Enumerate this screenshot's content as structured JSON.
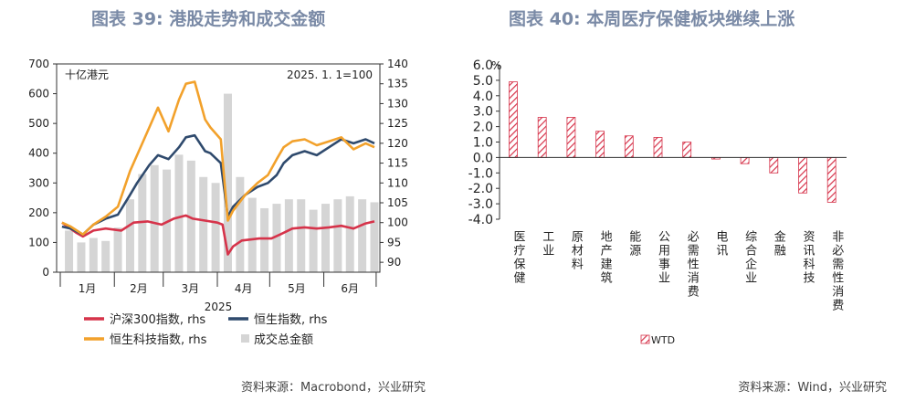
{
  "titles": {
    "left": "图表 39: 港股走势和成交金额",
    "right": "图表 40: 本周医疗保健板块继续上涨"
  },
  "sources": {
    "left": "资料来源：Macrobond，兴业研究",
    "right": "资料来源：Wind，兴业研究"
  },
  "colors": {
    "csi300": "#d6334a",
    "hsi": "#2f4a6d",
    "hstech": "#f2a12b",
    "turnover": "#d5d5d5",
    "wtd_bar": "#d6334a"
  },
  "chart_data": [
    {
      "type": "line",
      "title": "",
      "unit_note": "十亿港元",
      "base_note": "2025. 1. 1=100",
      "xlabel": "2025",
      "x_ticks": [
        "1月",
        "2月",
        "3月",
        "4月",
        "5月",
        "6月"
      ],
      "x_range": [
        "2025-01-01",
        "2025-06-30"
      ],
      "ylim_left": [
        0,
        700
      ],
      "yticks_left": [
        0,
        100,
        200,
        300,
        400,
        500,
        600,
        700
      ],
      "ylim_right": [
        87.5,
        140
      ],
      "yticks_right": [
        90,
        95,
        100,
        105,
        110,
        115,
        120,
        125,
        130,
        135,
        140
      ],
      "legend_position": "bottom",
      "series": [
        {
          "name": "沪深300指数, rhs",
          "axis": "right",
          "x": [
            "2025-01-02",
            "2025-01-10",
            "2025-01-14",
            "2025-01-20",
            "2025-01-27",
            "2025-02-05",
            "2025-02-12",
            "2025-02-20",
            "2025-02-28",
            "2025-03-07",
            "2025-03-14",
            "2025-03-18",
            "2025-03-25",
            "2025-04-01",
            "2025-04-04",
            "2025-04-07",
            "2025-04-10",
            "2025-04-15",
            "2025-04-25",
            "2025-05-02",
            "2025-05-07",
            "2025-05-14",
            "2025-05-21",
            "2025-05-28",
            "2025-06-04",
            "2025-06-11",
            "2025-06-18",
            "2025-06-25",
            "2025-06-30"
          ],
          "values": [
            100,
            97.5,
            96.5,
            98,
            98.5,
            98,
            100,
            100.3,
            99.5,
            101,
            101.8,
            101,
            100.5,
            100,
            99.5,
            92,
            94,
            95.5,
            96,
            96,
            97,
            98.5,
            98.8,
            98.5,
            98.8,
            99.2,
            98.5,
            99.8,
            100.3
          ]
        },
        {
          "name": "恒生指数, rhs",
          "axis": "right",
          "x": [
            "2025-01-02",
            "2025-01-07",
            "2025-01-14",
            "2025-01-20",
            "2025-01-27",
            "2025-02-03",
            "2025-02-10",
            "2025-02-14",
            "2025-02-21",
            "2025-02-26",
            "2025-03-04",
            "2025-03-10",
            "2025-03-14",
            "2025-03-19",
            "2025-03-25",
            "2025-03-28",
            "2025-04-03",
            "2025-04-07",
            "2025-04-10",
            "2025-04-17",
            "2025-04-24",
            "2025-04-30",
            "2025-05-05",
            "2025-05-09",
            "2025-05-14",
            "2025-05-21",
            "2025-05-28",
            "2025-06-04",
            "2025-06-11",
            "2025-06-18",
            "2025-06-25",
            "2025-06-30"
          ],
          "values": [
            99,
            98.5,
            97,
            99.5,
            101,
            102,
            107,
            110,
            114.5,
            117,
            116,
            119,
            121.5,
            122,
            118,
            117.5,
            115,
            101.5,
            104,
            107,
            109,
            110,
            112,
            115,
            117,
            118,
            117,
            119,
            121,
            120,
            121,
            120
          ]
        },
        {
          "name": "恒生科技指数, rhs",
          "axis": "right",
          "x": [
            "2025-01-02",
            "2025-01-07",
            "2025-01-14",
            "2025-01-20",
            "2025-01-27",
            "2025-02-03",
            "2025-02-10",
            "2025-02-14",
            "2025-02-21",
            "2025-02-26",
            "2025-03-04",
            "2025-03-10",
            "2025-03-14",
            "2025-03-19",
            "2025-03-25",
            "2025-03-28",
            "2025-04-03",
            "2025-04-07",
            "2025-04-10",
            "2025-04-17",
            "2025-04-24",
            "2025-04-30",
            "2025-05-05",
            "2025-05-09",
            "2025-05-14",
            "2025-05-21",
            "2025-05-28",
            "2025-06-04",
            "2025-06-11",
            "2025-06-18",
            "2025-06-25",
            "2025-06-30"
          ],
          "values": [
            100,
            99,
            97,
            99.5,
            101.5,
            104,
            113,
            117,
            124,
            129,
            123,
            131,
            135,
            135.5,
            126,
            124,
            121,
            100.5,
            103,
            107,
            110,
            112,
            116,
            119,
            120.5,
            121,
            119.5,
            120.5,
            121.5,
            118.5,
            120,
            119
          ]
        },
        {
          "name": "成交总金额",
          "type": "bar",
          "axis": "left",
          "x": [
            "2025-01-06",
            "2025-01-13",
            "2025-01-20",
            "2025-01-27",
            "2025-02-03",
            "2025-02-10",
            "2025-02-17",
            "2025-02-24",
            "2025-03-03",
            "2025-03-10",
            "2025-03-17",
            "2025-03-24",
            "2025-03-31",
            "2025-04-07",
            "2025-04-14",
            "2025-04-21",
            "2025-04-28",
            "2025-05-05",
            "2025-05-12",
            "2025-05-19",
            "2025-05-26",
            "2025-06-02",
            "2025-06-09",
            "2025-06-16",
            "2025-06-23",
            "2025-06-30"
          ],
          "values": [
            140,
            100,
            115,
            105,
            150,
            245,
            330,
            360,
            345,
            395,
            375,
            320,
            300,
            600,
            320,
            250,
            215,
            230,
            245,
            245,
            210,
            230,
            245,
            255,
            245,
            235
          ]
        }
      ]
    },
    {
      "type": "bar",
      "title": "",
      "unit": "%",
      "categories": [
        "医疗保健",
        "工业",
        "原材料",
        "地产建筑",
        "能源",
        "公用事业",
        "必需性消费",
        "电讯",
        "综合企业",
        "金融",
        "资讯科技",
        "非必需性消费"
      ],
      "series": [
        {
          "name": "WTD",
          "values": [
            4.9,
            2.6,
            2.6,
            1.7,
            1.4,
            1.3,
            1.0,
            -0.1,
            -0.4,
            -1.0,
            -2.3,
            -2.9
          ]
        }
      ],
      "ylim": [
        -4.0,
        6.0
      ],
      "yticks": [
        "6.0",
        "5.0",
        "4.0",
        "3.0",
        "2.0",
        "1.0",
        "0.0",
        "-1.0",
        "-2.0",
        "-3.0",
        "-4.0"
      ],
      "legend_position": "bottom"
    }
  ]
}
